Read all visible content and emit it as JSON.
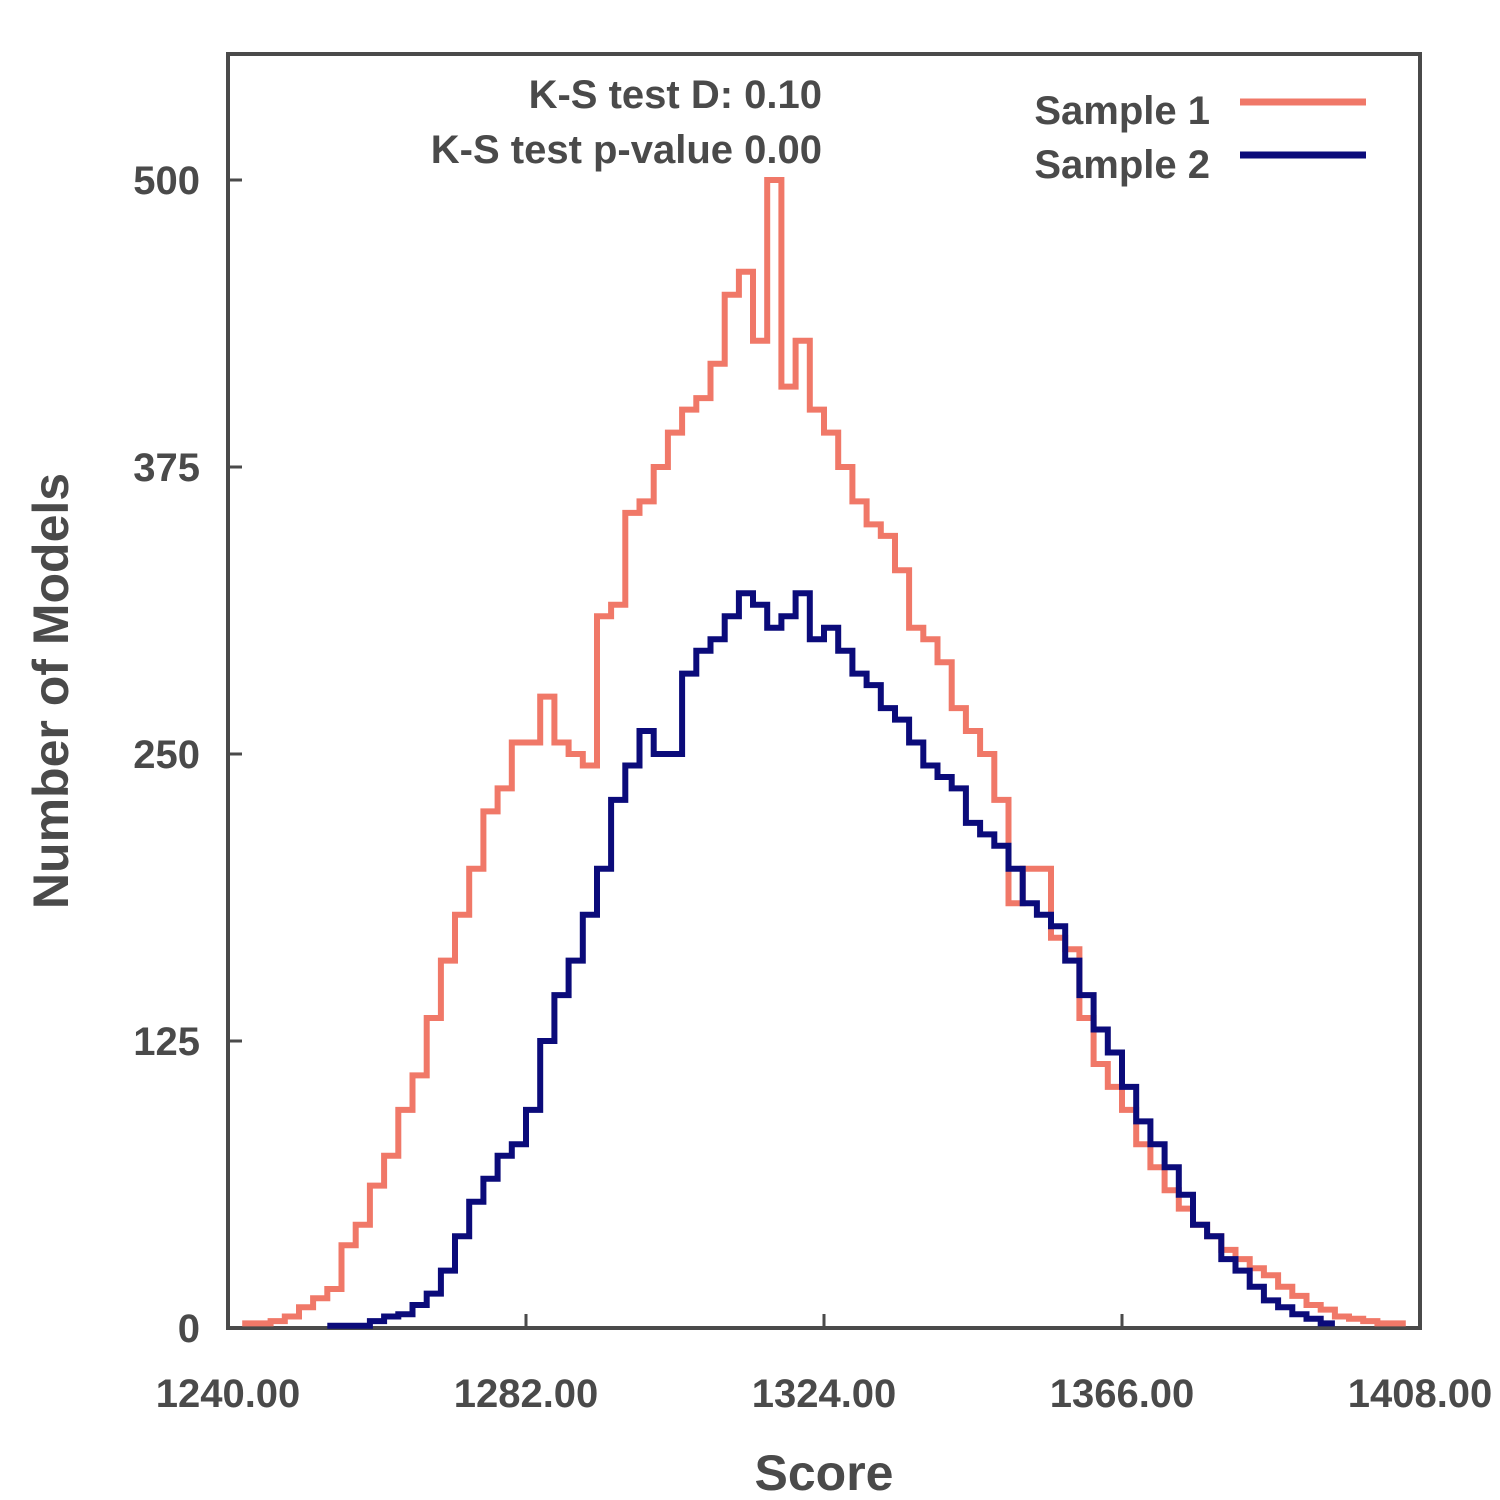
{
  "chart_data": {
    "type": "line",
    "step": true,
    "title": "",
    "xlabel": "Score",
    "ylabel": "Number of Models",
    "xlim": [
      1240,
      1408
    ],
    "ylim": [
      0,
      550
    ],
    "x_ticks": [
      "1240.00",
      "1282.00",
      "1324.00",
      "1366.00",
      "1408.00"
    ],
    "y_ticks": [
      "0",
      "125",
      "250",
      "375",
      "500"
    ],
    "grid": false,
    "legend_position": "top-right",
    "annotations": [
      "K-S test D: 0.10",
      "K-S test p-value 0.00"
    ],
    "series": [
      {
        "name": "Sample 1",
        "color": "#f07868",
        "x": [
          1243,
          1245,
          1247,
          1249,
          1251,
          1253,
          1255,
          1257,
          1259,
          1261,
          1263,
          1265,
          1267,
          1269,
          1271,
          1273,
          1275,
          1277,
          1279,
          1281,
          1283,
          1285,
          1287,
          1289,
          1291,
          1293,
          1295,
          1297,
          1299,
          1301,
          1303,
          1305,
          1307,
          1309,
          1311,
          1313,
          1315,
          1317,
          1319,
          1321,
          1323,
          1325,
          1327,
          1329,
          1331,
          1333,
          1335,
          1337,
          1339,
          1341,
          1343,
          1345,
          1347,
          1349,
          1351,
          1353,
          1355,
          1357,
          1359,
          1361,
          1363,
          1365,
          1367,
          1369,
          1371,
          1373,
          1375,
          1377,
          1379,
          1381,
          1383,
          1385,
          1387,
          1389,
          1391,
          1393,
          1395,
          1397,
          1399,
          1401,
          1403,
          1405
        ],
        "values": [
          2,
          2,
          3,
          5,
          9,
          13,
          17,
          36,
          45,
          62,
          75,
          95,
          110,
          135,
          160,
          180,
          200,
          225,
          235,
          255,
          255,
          275,
          255,
          250,
          245,
          310,
          315,
          355,
          360,
          375,
          390,
          400,
          405,
          420,
          450,
          460,
          430,
          500,
          410,
          430,
          400,
          390,
          375,
          360,
          350,
          345,
          330,
          305,
          300,
          290,
          270,
          260,
          250,
          230,
          185,
          200,
          200,
          170,
          165,
          135,
          115,
          105,
          95,
          80,
          70,
          60,
          52,
          45,
          40,
          34,
          30,
          26,
          23,
          18,
          14,
          10,
          8,
          5,
          4,
          3,
          2,
          2
        ]
      },
      {
        "name": "Sample 2",
        "color": "#0b0b7a",
        "x": [
          1255,
          1257,
          1259,
          1261,
          1263,
          1265,
          1267,
          1269,
          1271,
          1273,
          1275,
          1277,
          1279,
          1281,
          1283,
          1285,
          1287,
          1289,
          1291,
          1293,
          1295,
          1297,
          1299,
          1301,
          1303,
          1305,
          1307,
          1309,
          1311,
          1313,
          1315,
          1317,
          1319,
          1321,
          1323,
          1325,
          1327,
          1329,
          1331,
          1333,
          1335,
          1337,
          1339,
          1341,
          1343,
          1345,
          1347,
          1349,
          1351,
          1353,
          1355,
          1357,
          1359,
          1361,
          1363,
          1365,
          1367,
          1369,
          1371,
          1373,
          1375,
          1377,
          1379,
          1381,
          1383,
          1385,
          1387,
          1389,
          1391,
          1393,
          1395
        ],
        "values": [
          1,
          1,
          1,
          3,
          5,
          6,
          10,
          15,
          25,
          40,
          55,
          65,
          75,
          80,
          95,
          125,
          145,
          160,
          180,
          200,
          230,
          245,
          260,
          250,
          250,
          285,
          295,
          300,
          310,
          320,
          315,
          305,
          310,
          320,
          300,
          305,
          295,
          285,
          280,
          270,
          265,
          255,
          245,
          240,
          235,
          220,
          215,
          210,
          200,
          185,
          180,
          175,
          160,
          145,
          130,
          120,
          105,
          90,
          80,
          70,
          58,
          45,
          40,
          30,
          25,
          18,
          12,
          9,
          6,
          4,
          2
        ]
      }
    ]
  }
}
